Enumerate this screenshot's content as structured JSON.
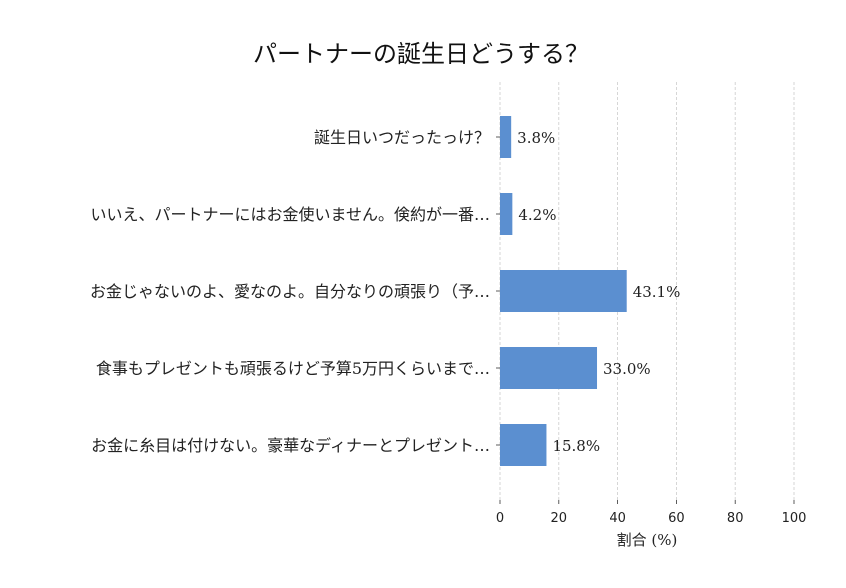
{
  "chart_data": {
    "type": "bar",
    "orientation": "horizontal",
    "title": "パートナーの誕生日どうする？",
    "categories": [
      "誕生日いつだったっけ？",
      "いいえ、パートナーにはお金使いません。倹約が一番…",
      "お金じゃないのよ、愛なのよ。自分なりの頑張り（予…",
      "食事もプレゼントも頑張るけど予算5万円くらいまで…",
      "お金に糸目は付けない。豪華なディナーとプレゼント…"
    ],
    "values": [
      3.8,
      4.2,
      43.1,
      33.0,
      15.8
    ],
    "value_labels": [
      "3.8%",
      "4.2%",
      "43.1%",
      "33.0%",
      "15.8%"
    ],
    "xlabel": "割合 (%)",
    "ylabel": "",
    "xlim": [
      0,
      100
    ],
    "xticks": [
      0,
      20,
      40,
      60,
      80,
      100
    ],
    "grid": "x-dashed",
    "bar_color": "#5b8fd0"
  }
}
